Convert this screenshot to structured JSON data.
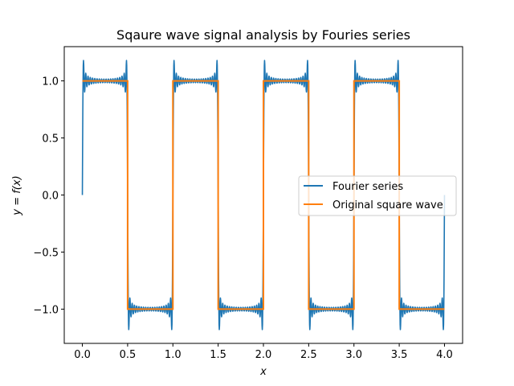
{
  "chart_data": {
    "type": "line",
    "title": "Sqaure wave signal analysis by Fouries series",
    "xlabel": "x",
    "ylabel": "y = f(x)",
    "xlim": [
      -0.2,
      4.2
    ],
    "ylim": [
      -1.3,
      1.3
    ],
    "x_ticks": [
      0.0,
      0.5,
      1.0,
      1.5,
      2.0,
      2.5,
      3.0,
      3.5,
      4.0
    ],
    "x_tick_labels": [
      "0.0",
      "0.5",
      "1.0",
      "1.5",
      "2.0",
      "2.5",
      "3.0",
      "3.5",
      "4.0"
    ],
    "y_ticks": [
      -1.0,
      -0.5,
      0.0,
      0.5,
      1.0
    ],
    "y_tick_labels": [
      "−1.0",
      "−0.5",
      "0.0",
      "0.5",
      "1.0"
    ],
    "grid": false,
    "legend_position": "center-right",
    "series": [
      {
        "name": "Fourier series",
        "color": "#1f77b4",
        "kind": "fourier-square-wave",
        "period": 1.0,
        "amplitude": 1.0,
        "harmonics": 20,
        "x_range": [
          0.0,
          4.0
        ],
        "samples": 1601
      },
      {
        "name": "Original square wave",
        "color": "#ff7f0e",
        "kind": "square-wave",
        "x": [
          0.0,
          0.5,
          0.5,
          1.0,
          1.0,
          1.5,
          1.5,
          2.0,
          2.0,
          2.5,
          2.5,
          3.0,
          3.0,
          3.5,
          3.5,
          4.0
        ],
        "y": [
          1,
          1,
          -1,
          -1,
          1,
          1,
          -1,
          -1,
          1,
          1,
          -1,
          -1,
          1,
          1,
          -1,
          -1
        ]
      }
    ]
  }
}
